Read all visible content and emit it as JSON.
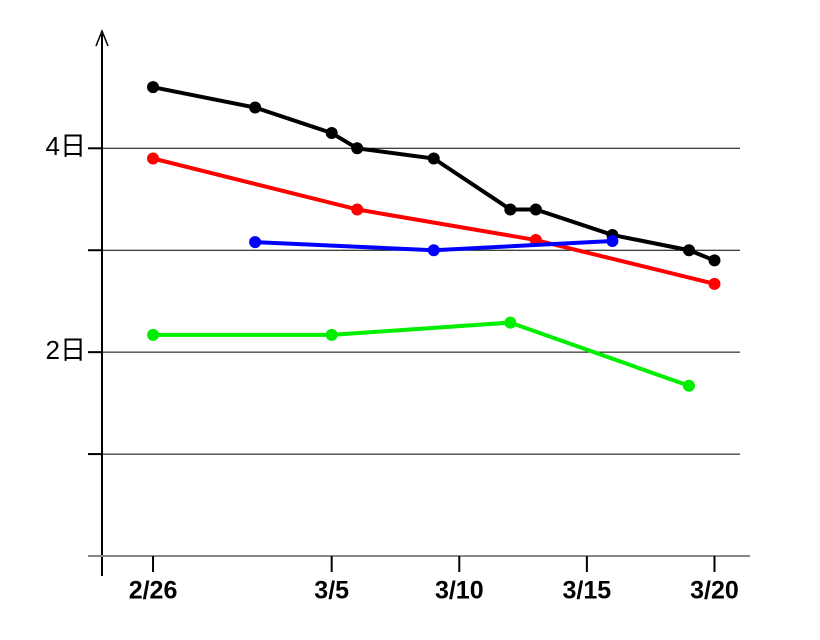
{
  "chart_data": {
    "type": "line",
    "xlim": [
      "2/24",
      "3/21"
    ],
    "xticks": [
      "2/26",
      "3/5",
      "3/10",
      "3/15",
      "3/20"
    ],
    "ylim": [
      0,
      5.2
    ],
    "yticks": [
      {
        "value": 0,
        "label": null
      },
      {
        "value": 1,
        "label": null
      },
      {
        "value": 2,
        "label": "2日"
      },
      {
        "value": 3,
        "label": null
      },
      {
        "value": 4,
        "label": "4日"
      }
    ],
    "grid": true,
    "series": [
      {
        "color": "#000000",
        "x": [
          "2/26",
          "3/2",
          "3/5",
          "3/6",
          "3/9",
          "3/12",
          "3/13",
          "3/16",
          "3/19",
          "3/20"
        ],
        "values": [
          4.6,
          4.4,
          4.15,
          4.0,
          3.9,
          3.4,
          3.4,
          3.15,
          3.0,
          2.9
        ]
      },
      {
        "color": "#ff0000",
        "x": [
          "2/26",
          "3/6",
          "3/13",
          "3/20"
        ],
        "values": [
          3.9,
          3.4,
          3.1,
          2.67
        ]
      },
      {
        "color": "#0000ff",
        "x": [
          "3/2",
          "3/9",
          "3/16"
        ],
        "values": [
          3.08,
          3.0,
          3.09
        ]
      },
      {
        "color": "#00ee00",
        "x": [
          "2/26",
          "3/5",
          "3/12",
          "3/19"
        ],
        "values": [
          2.17,
          2.17,
          2.29,
          1.67
        ]
      }
    ]
  }
}
